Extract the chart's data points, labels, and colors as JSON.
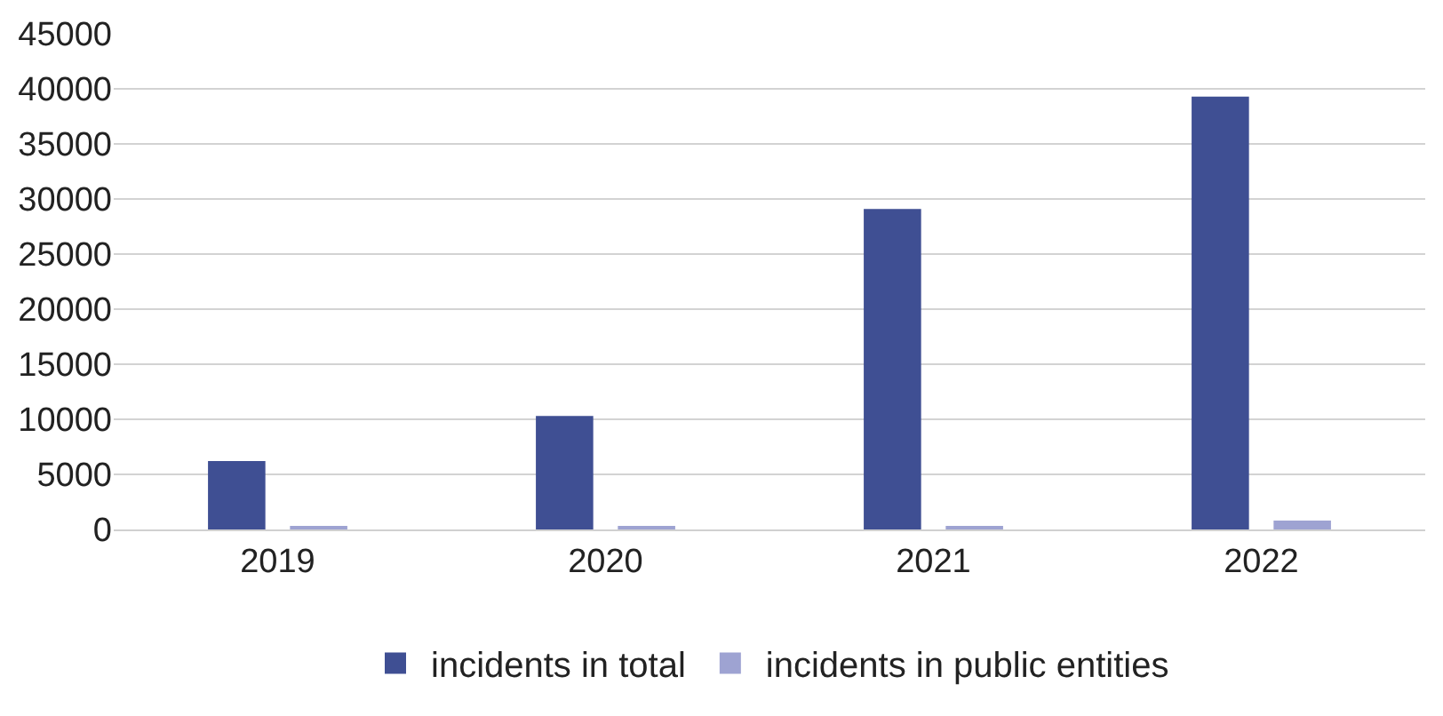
{
  "chart_data": {
    "type": "bar",
    "categories": [
      "2019",
      "2020",
      "2021",
      "2022"
    ],
    "series": [
      {
        "name": "incidents in total",
        "color": "#3f4f93",
        "values": [
          6200,
          10300,
          29100,
          39300
        ]
      },
      {
        "name": "incidents in public entities",
        "color": "#9ea3d2",
        "values": [
          300,
          300,
          300,
          800
        ]
      }
    ],
    "ylim": [
      0,
      45000
    ],
    "yticks": [
      0,
      5000,
      10000,
      15000,
      20000,
      25000,
      30000,
      35000,
      40000,
      45000
    ],
    "grid": "y",
    "legend": "bottom"
  }
}
